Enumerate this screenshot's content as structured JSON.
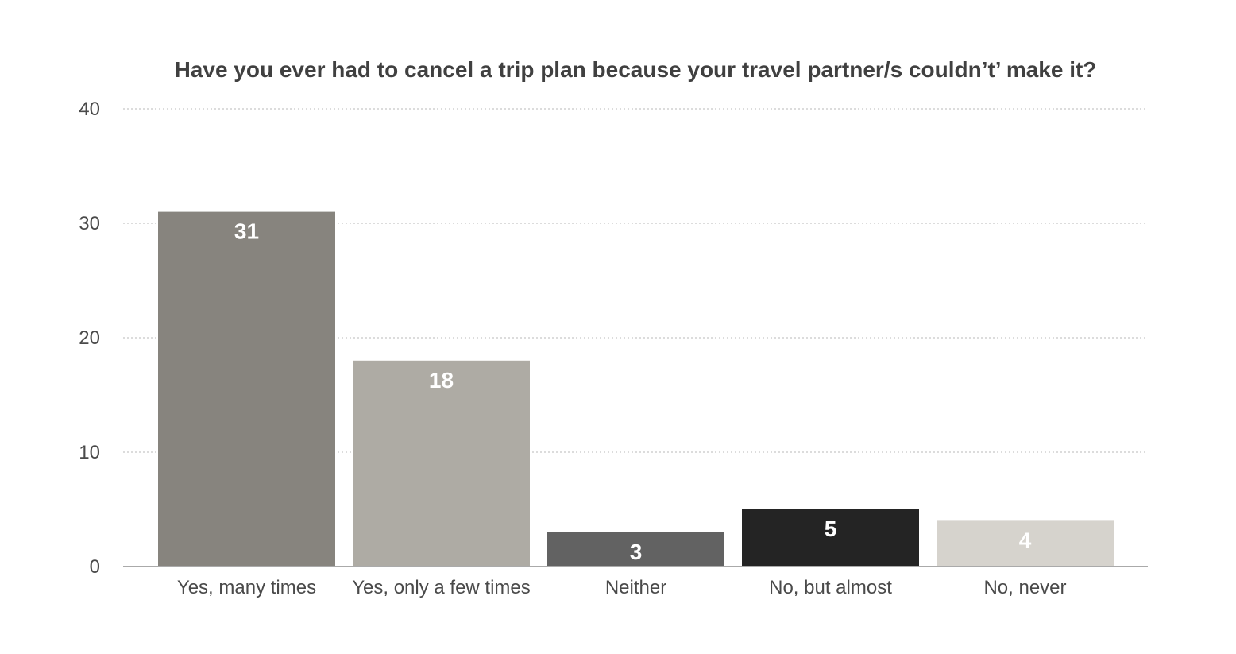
{
  "chart_data": {
    "type": "bar",
    "title": "Have you ever had to cancel a trip plan because your travel partner/s couldn’t’ make it?",
    "xlabel": "",
    "ylabel": "",
    "ylim": [
      0,
      40
    ],
    "yticks": [
      "0",
      "10",
      "20",
      "30",
      "40"
    ],
    "categories": [
      "Yes, many times",
      "Yes, only a few times",
      "Neither",
      "No, but almost",
      "No, never"
    ],
    "values": [
      31,
      18,
      3,
      5,
      4
    ],
    "data_labels": [
      "31",
      "18",
      "3",
      "5",
      "4"
    ],
    "colors": [
      "#87847e",
      "#aeaba4",
      "#626262",
      "#242424",
      "#d6d3cd"
    ],
    "grid": true,
    "legend": "none"
  }
}
